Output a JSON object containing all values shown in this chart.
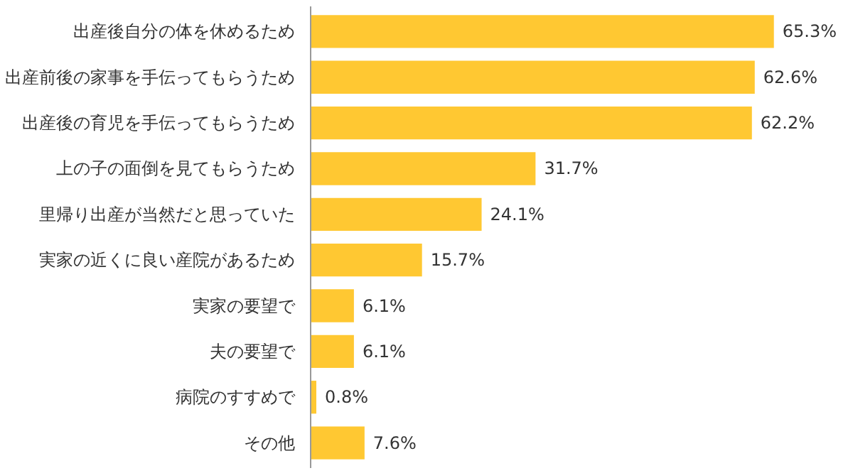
{
  "chart_data": {
    "type": "bar",
    "orientation": "horizontal",
    "categories": [
      "出産後自分の体を休めるため",
      "出産前後の家事を手伝ってもらうため",
      "出産後の育児を手伝ってもらうため",
      "上の子の面倒を見てもらうため",
      "里帰り出産が当然だと思っていた",
      "実家の近くに良い産院があるため",
      "実家の要望で",
      "夫の要望で",
      "病院のすすめで",
      "その他"
    ],
    "values": [
      65.3,
      62.6,
      62.2,
      31.7,
      24.1,
      15.7,
      6.1,
      6.1,
      0.8,
      7.6
    ],
    "value_labels": [
      "65.3%",
      "62.6%",
      "62.2%",
      "31.7%",
      "24.1%",
      "15.7%",
      "6.1%",
      "6.1%",
      "0.8%",
      "7.6%"
    ],
    "color": "#ffc832",
    "grid": false
  }
}
